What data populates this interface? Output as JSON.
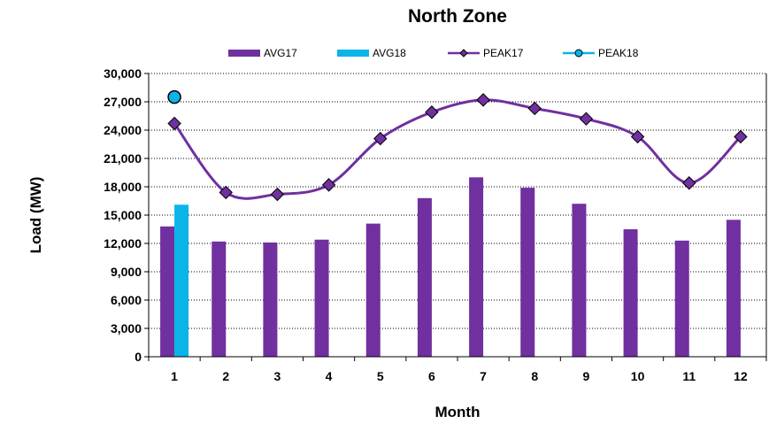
{
  "chart_data": {
    "type": "bar",
    "title": "North Zone",
    "xlabel": "Month",
    "ylabel": "Load (MW)",
    "categories": [
      "1",
      "2",
      "3",
      "4",
      "5",
      "6",
      "7",
      "8",
      "9",
      "10",
      "11",
      "12"
    ],
    "ylim": [
      0,
      30000
    ],
    "ytick_step": 3000,
    "ytick_labels": [
      "0",
      "3,000",
      "6,000",
      "9,000",
      "12,000",
      "15,000",
      "18,000",
      "21,000",
      "24,000",
      "27,000",
      "30,000"
    ],
    "grid": "horizontal dotted",
    "legend_position": "top-center",
    "bar_series": [
      {
        "name": "AVG17",
        "color": "#7030A0",
        "values": [
          13800,
          12200,
          12100,
          12400,
          14100,
          16800,
          19000,
          17900,
          16200,
          13500,
          12300,
          14500
        ]
      },
      {
        "name": "AVG18",
        "color": "#0AB4E8",
        "values": [
          16100,
          null,
          null,
          null,
          null,
          null,
          null,
          null,
          null,
          null,
          null,
          null
        ]
      }
    ],
    "line_series": [
      {
        "name": "PEAK17",
        "color": "#7030A0",
        "marker": "diamond",
        "values": [
          24700,
          17400,
          17200,
          18200,
          23100,
          25900,
          27200,
          26300,
          25200,
          23300,
          18400,
          23300
        ]
      },
      {
        "name": "PEAK18",
        "color": "#0AB4E8",
        "marker": "circle",
        "values": [
          27500,
          null,
          null,
          null,
          null,
          null,
          null,
          null,
          null,
          null,
          null,
          null
        ]
      }
    ]
  }
}
